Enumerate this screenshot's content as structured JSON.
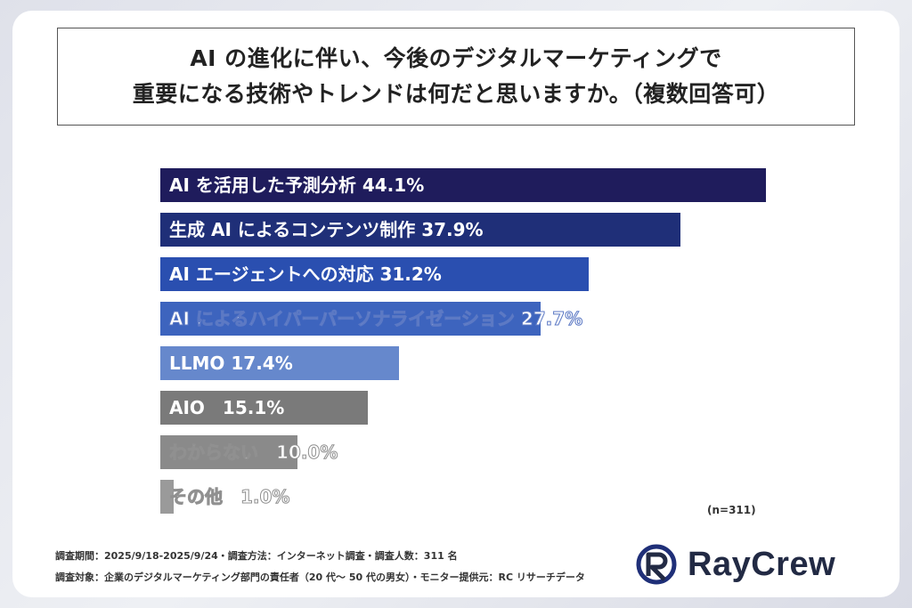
{
  "title": {
    "line1": "AI の進化に伴い、今後のデジタルマーケティングで",
    "line2": "重要になる技術やトレンドは何だと思いますか。（複数回答可）"
  },
  "chart_data": {
    "type": "bar",
    "orientation": "horizontal",
    "categories": [
      "AI を活用した予測分析",
      "生成 AI によるコンテンツ制作",
      "AI エージェントへの対応",
      "AI によるハイパーパーソナライゼーション",
      "LLMO",
      "AIO",
      "わからない",
      "その他"
    ],
    "values": [
      44.1,
      37.9,
      31.2,
      27.7,
      17.4,
      15.1,
      10.0,
      1.0
    ],
    "value_labels": [
      "44.1%",
      "37.9%",
      "31.2%",
      "27.7%",
      "17.4%",
      "15.1%",
      "10.0%",
      "1.0%"
    ],
    "colors": [
      "#1f1c5c",
      "#1f2f78",
      "#2a4fb0",
      "#3d64be",
      "#6688cc",
      "#7a7a7a",
      "#8a8a8a",
      "#9a9a9a"
    ],
    "xlim": [
      0,
      44.1
    ],
    "unit": "%",
    "sample_size": "(n=311)"
  },
  "footer": {
    "line1": "調査期間：2025/9/18-2025/9/24・調査方法：インターネット調査・調査人数：311 名",
    "line2": "調査対象：企業のデジタルマーケティング部門の責任者（20 代〜 50 代の男女）・モニター提供元：RC リサーチデータ"
  },
  "logo": {
    "text": "RayCrew"
  }
}
